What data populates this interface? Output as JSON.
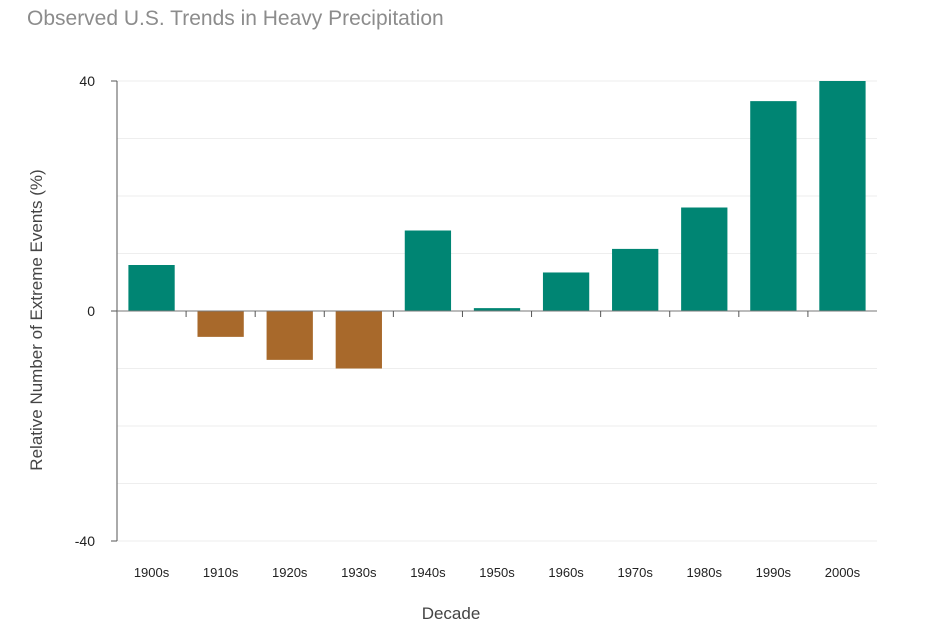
{
  "chart_data": {
    "type": "bar",
    "title": "Observed U.S. Trends in Heavy Precipitation",
    "xlabel": "Decade",
    "ylabel": "Relative Number of Extreme Events (%)",
    "categories": [
      "1900s",
      "1910s",
      "1920s",
      "1930s",
      "1940s",
      "1950s",
      "1960s",
      "1970s",
      "1980s",
      "1990s",
      "2000s"
    ],
    "values": [
      8,
      -4.5,
      -8.5,
      -10,
      14,
      0.5,
      6.7,
      10.8,
      18,
      36.5,
      40
    ],
    "ylim": [
      -40,
      40
    ],
    "yticks": [
      -40,
      0,
      40
    ],
    "grid": true,
    "colors": {
      "positive": "#008573",
      "negative": "#A8692B",
      "grid": "#eeeeee",
      "axis": "#555555",
      "zero_line": "#777777"
    }
  }
}
